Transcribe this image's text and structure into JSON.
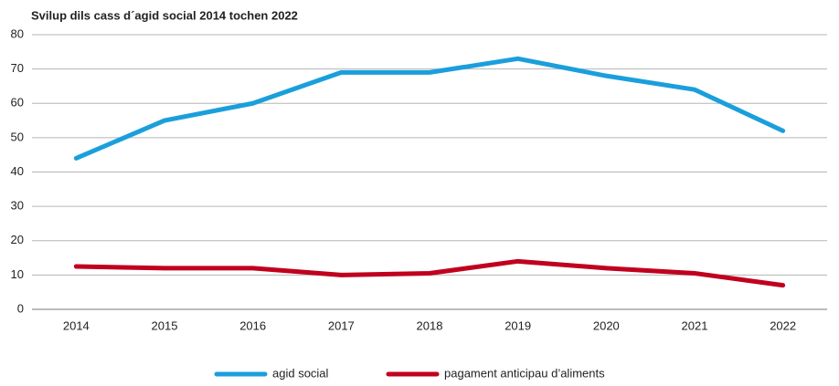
{
  "chart_data": {
    "type": "line",
    "title": "Svilup dils cass d´agid social 2014 tochen 2022",
    "categories": [
      "2014",
      "2015",
      "2016",
      "2017",
      "2018",
      "2019",
      "2020",
      "2021",
      "2022"
    ],
    "series": [
      {
        "name": "agid social",
        "color": "#1a9fdc",
        "values": [
          44,
          55,
          60,
          69,
          69,
          73,
          68,
          64,
          52
        ]
      },
      {
        "name": "pagament anticipau d’aliments",
        "color": "#c0001e",
        "values": [
          12.5,
          12,
          12,
          10,
          10.5,
          14,
          12,
          10.5,
          7
        ]
      }
    ],
    "ylim": [
      0,
      80
    ],
    "yticks": [
      0,
      10,
      20,
      30,
      40,
      50,
      60,
      70,
      80
    ],
    "grid": true,
    "legend": "bottom"
  }
}
